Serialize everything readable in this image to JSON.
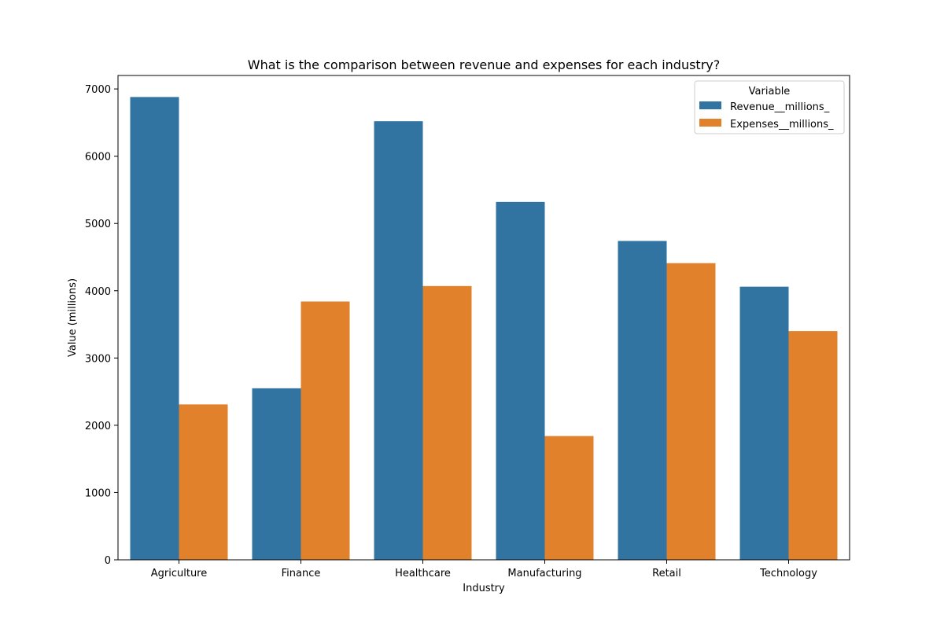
{
  "chart_data": {
    "type": "bar",
    "title": "What is the comparison between revenue and expenses for each industry?",
    "xlabel": "Industry",
    "ylabel": "Value (millions)",
    "categories": [
      "Agriculture",
      "Finance",
      "Healthcare",
      "Manufacturing",
      "Retail",
      "Technology"
    ],
    "series": [
      {
        "name": "Revenue__millions_",
        "color": "#3274a1",
        "values": [
          6880,
          2550,
          6520,
          5320,
          4740,
          4060
        ]
      },
      {
        "name": "Expenses__millions_",
        "color": "#e1812c",
        "values": [
          2310,
          3840,
          4070,
          1840,
          4410,
          3400
        ]
      }
    ],
    "ylim": [
      0,
      7200
    ],
    "yticks": [
      0,
      1000,
      2000,
      3000,
      4000,
      5000,
      6000,
      7000
    ],
    "grid": false,
    "legend": {
      "title": "Variable",
      "placement": "top-right"
    }
  }
}
